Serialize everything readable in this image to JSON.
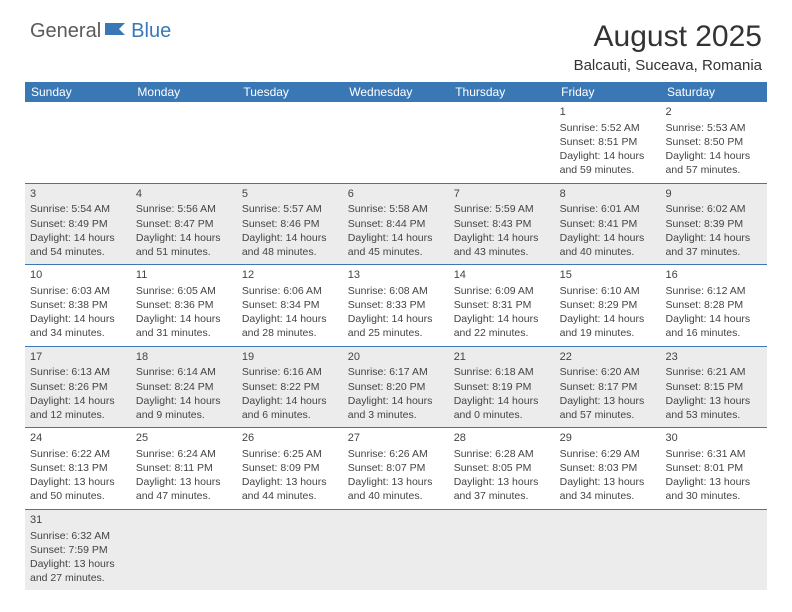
{
  "logo": {
    "part1": "General",
    "part2": "Blue"
  },
  "title": "August 2025",
  "location": "Balcauti, Suceava, Romania",
  "colors": {
    "header_bg": "#3a78b5",
    "alt_row": "#ececec",
    "text": "#333333"
  },
  "day_headers": [
    "Sunday",
    "Monday",
    "Tuesday",
    "Wednesday",
    "Thursday",
    "Friday",
    "Saturday"
  ],
  "weeks": [
    [
      null,
      null,
      null,
      null,
      null,
      {
        "n": "1",
        "sr": "Sunrise: 5:52 AM",
        "ss": "Sunset: 8:51 PM",
        "dl": "Daylight: 14 hours and 59 minutes."
      },
      {
        "n": "2",
        "sr": "Sunrise: 5:53 AM",
        "ss": "Sunset: 8:50 PM",
        "dl": "Daylight: 14 hours and 57 minutes."
      }
    ],
    [
      {
        "n": "3",
        "sr": "Sunrise: 5:54 AM",
        "ss": "Sunset: 8:49 PM",
        "dl": "Daylight: 14 hours and 54 minutes."
      },
      {
        "n": "4",
        "sr": "Sunrise: 5:56 AM",
        "ss": "Sunset: 8:47 PM",
        "dl": "Daylight: 14 hours and 51 minutes."
      },
      {
        "n": "5",
        "sr": "Sunrise: 5:57 AM",
        "ss": "Sunset: 8:46 PM",
        "dl": "Daylight: 14 hours and 48 minutes."
      },
      {
        "n": "6",
        "sr": "Sunrise: 5:58 AM",
        "ss": "Sunset: 8:44 PM",
        "dl": "Daylight: 14 hours and 45 minutes."
      },
      {
        "n": "7",
        "sr": "Sunrise: 5:59 AM",
        "ss": "Sunset: 8:43 PM",
        "dl": "Daylight: 14 hours and 43 minutes."
      },
      {
        "n": "8",
        "sr": "Sunrise: 6:01 AM",
        "ss": "Sunset: 8:41 PM",
        "dl": "Daylight: 14 hours and 40 minutes."
      },
      {
        "n": "9",
        "sr": "Sunrise: 6:02 AM",
        "ss": "Sunset: 8:39 PM",
        "dl": "Daylight: 14 hours and 37 minutes."
      }
    ],
    [
      {
        "n": "10",
        "sr": "Sunrise: 6:03 AM",
        "ss": "Sunset: 8:38 PM",
        "dl": "Daylight: 14 hours and 34 minutes."
      },
      {
        "n": "11",
        "sr": "Sunrise: 6:05 AM",
        "ss": "Sunset: 8:36 PM",
        "dl": "Daylight: 14 hours and 31 minutes."
      },
      {
        "n": "12",
        "sr": "Sunrise: 6:06 AM",
        "ss": "Sunset: 8:34 PM",
        "dl": "Daylight: 14 hours and 28 minutes."
      },
      {
        "n": "13",
        "sr": "Sunrise: 6:08 AM",
        "ss": "Sunset: 8:33 PM",
        "dl": "Daylight: 14 hours and 25 minutes."
      },
      {
        "n": "14",
        "sr": "Sunrise: 6:09 AM",
        "ss": "Sunset: 8:31 PM",
        "dl": "Daylight: 14 hours and 22 minutes."
      },
      {
        "n": "15",
        "sr": "Sunrise: 6:10 AM",
        "ss": "Sunset: 8:29 PM",
        "dl": "Daylight: 14 hours and 19 minutes."
      },
      {
        "n": "16",
        "sr": "Sunrise: 6:12 AM",
        "ss": "Sunset: 8:28 PM",
        "dl": "Daylight: 14 hours and 16 minutes."
      }
    ],
    [
      {
        "n": "17",
        "sr": "Sunrise: 6:13 AM",
        "ss": "Sunset: 8:26 PM",
        "dl": "Daylight: 14 hours and 12 minutes."
      },
      {
        "n": "18",
        "sr": "Sunrise: 6:14 AM",
        "ss": "Sunset: 8:24 PM",
        "dl": "Daylight: 14 hours and 9 minutes."
      },
      {
        "n": "19",
        "sr": "Sunrise: 6:16 AM",
        "ss": "Sunset: 8:22 PM",
        "dl": "Daylight: 14 hours and 6 minutes."
      },
      {
        "n": "20",
        "sr": "Sunrise: 6:17 AM",
        "ss": "Sunset: 8:20 PM",
        "dl": "Daylight: 14 hours and 3 minutes."
      },
      {
        "n": "21",
        "sr": "Sunrise: 6:18 AM",
        "ss": "Sunset: 8:19 PM",
        "dl": "Daylight: 14 hours and 0 minutes."
      },
      {
        "n": "22",
        "sr": "Sunrise: 6:20 AM",
        "ss": "Sunset: 8:17 PM",
        "dl": "Daylight: 13 hours and 57 minutes."
      },
      {
        "n": "23",
        "sr": "Sunrise: 6:21 AM",
        "ss": "Sunset: 8:15 PM",
        "dl": "Daylight: 13 hours and 53 minutes."
      }
    ],
    [
      {
        "n": "24",
        "sr": "Sunrise: 6:22 AM",
        "ss": "Sunset: 8:13 PM",
        "dl": "Daylight: 13 hours and 50 minutes."
      },
      {
        "n": "25",
        "sr": "Sunrise: 6:24 AM",
        "ss": "Sunset: 8:11 PM",
        "dl": "Daylight: 13 hours and 47 minutes."
      },
      {
        "n": "26",
        "sr": "Sunrise: 6:25 AM",
        "ss": "Sunset: 8:09 PM",
        "dl": "Daylight: 13 hours and 44 minutes."
      },
      {
        "n": "27",
        "sr": "Sunrise: 6:26 AM",
        "ss": "Sunset: 8:07 PM",
        "dl": "Daylight: 13 hours and 40 minutes."
      },
      {
        "n": "28",
        "sr": "Sunrise: 6:28 AM",
        "ss": "Sunset: 8:05 PM",
        "dl": "Daylight: 13 hours and 37 minutes."
      },
      {
        "n": "29",
        "sr": "Sunrise: 6:29 AM",
        "ss": "Sunset: 8:03 PM",
        "dl": "Daylight: 13 hours and 34 minutes."
      },
      {
        "n": "30",
        "sr": "Sunrise: 6:31 AM",
        "ss": "Sunset: 8:01 PM",
        "dl": "Daylight: 13 hours and 30 minutes."
      }
    ],
    [
      {
        "n": "31",
        "sr": "Sunrise: 6:32 AM",
        "ss": "Sunset: 7:59 PM",
        "dl": "Daylight: 13 hours and 27 minutes."
      },
      null,
      null,
      null,
      null,
      null,
      null
    ]
  ]
}
